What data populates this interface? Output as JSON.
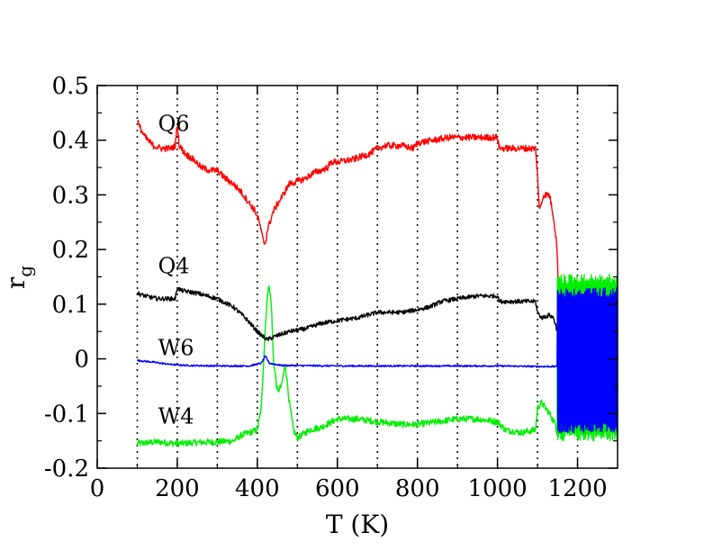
{
  "chart_data": {
    "type": "line",
    "xlabel": "T (K)",
    "ylabel": "r",
    "ylabel_subscript": "g",
    "xlim": [
      0,
      1300
    ],
    "ylim": [
      -0.2,
      0.5
    ],
    "x_ticks": [
      "0",
      "200",
      "400",
      "600",
      "800",
      "1000",
      "1200"
    ],
    "y_ticks": [
      "-0.2",
      "-0.1",
      "0",
      "0.1",
      "0.2",
      "0.3",
      "0.4",
      "0.5"
    ],
    "vertical_dotted_lines_at": [
      100,
      200,
      300,
      400,
      500,
      600,
      700,
      800,
      900,
      1000,
      1100,
      1200
    ],
    "series": [
      {
        "name": "Q6",
        "color": "#ff0000",
        "noise": 0.006,
        "points": [
          [
            100,
            0.44
          ],
          [
            105,
            0.425
          ],
          [
            120,
            0.405
          ],
          [
            140,
            0.39
          ],
          [
            160,
            0.385
          ],
          [
            185,
            0.385
          ],
          [
            195,
            0.39
          ],
          [
            200,
            0.43
          ],
          [
            205,
            0.39
          ],
          [
            220,
            0.375
          ],
          [
            240,
            0.365
          ],
          [
            260,
            0.35
          ],
          [
            280,
            0.345
          ],
          [
            300,
            0.345
          ],
          [
            320,
            0.33
          ],
          [
            340,
            0.32
          ],
          [
            360,
            0.305
          ],
          [
            380,
            0.285
          ],
          [
            395,
            0.27
          ],
          [
            405,
            0.25
          ],
          [
            415,
            0.215
          ],
          [
            420,
            0.21
          ],
          [
            425,
            0.235
          ],
          [
            440,
            0.27
          ],
          [
            460,
            0.295
          ],
          [
            480,
            0.32
          ],
          [
            500,
            0.325
          ],
          [
            520,
            0.33
          ],
          [
            540,
            0.34
          ],
          [
            560,
            0.345
          ],
          [
            575,
            0.35
          ],
          [
            585,
            0.36
          ],
          [
            600,
            0.36
          ],
          [
            640,
            0.365
          ],
          [
            680,
            0.375
          ],
          [
            700,
            0.385
          ],
          [
            720,
            0.39
          ],
          [
            760,
            0.39
          ],
          [
            790,
            0.385
          ],
          [
            800,
            0.395
          ],
          [
            840,
            0.4
          ],
          [
            880,
            0.405
          ],
          [
            920,
            0.405
          ],
          [
            960,
            0.405
          ],
          [
            1000,
            0.405
          ],
          [
            1005,
            0.385
          ],
          [
            1050,
            0.385
          ],
          [
            1095,
            0.385
          ],
          [
            1100,
            0.335
          ],
          [
            1105,
            0.27
          ],
          [
            1115,
            0.3
          ],
          [
            1130,
            0.3
          ],
          [
            1140,
            0.26
          ],
          [
            1148,
            0.21
          ],
          [
            1152,
            0.14
          ]
        ],
        "label": "Q6",
        "label_at": [
          152,
          0.43
        ]
      },
      {
        "name": "Q4",
        "color": "#000000",
        "noise": 0.004,
        "points": [
          [
            100,
            0.12
          ],
          [
            120,
            0.115
          ],
          [
            150,
            0.11
          ],
          [
            180,
            0.11
          ],
          [
            195,
            0.11
          ],
          [
            200,
            0.13
          ],
          [
            210,
            0.125
          ],
          [
            250,
            0.12
          ],
          [
            300,
            0.11
          ],
          [
            340,
            0.095
          ],
          [
            370,
            0.075
          ],
          [
            400,
            0.05
          ],
          [
            415,
            0.04
          ],
          [
            425,
            0.035
          ],
          [
            440,
            0.04
          ],
          [
            480,
            0.05
          ],
          [
            520,
            0.055
          ],
          [
            560,
            0.065
          ],
          [
            600,
            0.07
          ],
          [
            650,
            0.075
          ],
          [
            700,
            0.085
          ],
          [
            760,
            0.085
          ],
          [
            800,
            0.09
          ],
          [
            830,
            0.095
          ],
          [
            860,
            0.105
          ],
          [
            900,
            0.11
          ],
          [
            950,
            0.115
          ],
          [
            1000,
            0.115
          ],
          [
            1005,
            0.105
          ],
          [
            1050,
            0.105
          ],
          [
            1095,
            0.105
          ],
          [
            1100,
            0.085
          ],
          [
            1110,
            0.075
          ],
          [
            1130,
            0.08
          ],
          [
            1140,
            0.075
          ],
          [
            1150,
            0.05
          ]
        ],
        "label": "Q4",
        "label_at": [
          152,
          0.17
        ]
      },
      {
        "name": "W6",
        "color": "#0000ff",
        "noise": 0.0015,
        "points": [
          [
            100,
            -0.003
          ],
          [
            140,
            -0.006
          ],
          [
            180,
            -0.01
          ],
          [
            220,
            -0.012
          ],
          [
            300,
            -0.013
          ],
          [
            380,
            -0.013
          ],
          [
            410,
            -0.008
          ],
          [
            420,
            0.005
          ],
          [
            430,
            -0.008
          ],
          [
            460,
            -0.012
          ],
          [
            600,
            -0.013
          ],
          [
            800,
            -0.013
          ],
          [
            1000,
            -0.013
          ],
          [
            1100,
            -0.014
          ],
          [
            1150,
            -0.014
          ]
        ],
        "label": "W6",
        "label_at": [
          152,
          0.02
        ]
      },
      {
        "name": "W4",
        "color": "#00ee00",
        "noise": 0.006,
        "points": [
          [
            100,
            -0.155
          ],
          [
            150,
            -0.152
          ],
          [
            200,
            -0.155
          ],
          [
            250,
            -0.153
          ],
          [
            300,
            -0.152
          ],
          [
            340,
            -0.15
          ],
          [
            360,
            -0.14
          ],
          [
            380,
            -0.135
          ],
          [
            400,
            -0.13
          ],
          [
            410,
            -0.09
          ],
          [
            420,
            0.06
          ],
          [
            428,
            0.14
          ],
          [
            435,
            0.1
          ],
          [
            440,
            0.0
          ],
          [
            450,
            -0.06
          ],
          [
            460,
            -0.05
          ],
          [
            470,
            -0.01
          ],
          [
            480,
            -0.08
          ],
          [
            490,
            -0.13
          ],
          [
            500,
            -0.145
          ],
          [
            530,
            -0.13
          ],
          [
            560,
            -0.125
          ],
          [
            600,
            -0.11
          ],
          [
            650,
            -0.11
          ],
          [
            700,
            -0.115
          ],
          [
            760,
            -0.12
          ],
          [
            800,
            -0.12
          ],
          [
            850,
            -0.115
          ],
          [
            900,
            -0.11
          ],
          [
            950,
            -0.11
          ],
          [
            1000,
            -0.115
          ],
          [
            1020,
            -0.13
          ],
          [
            1060,
            -0.135
          ],
          [
            1095,
            -0.13
          ],
          [
            1100,
            -0.09
          ],
          [
            1110,
            -0.08
          ],
          [
            1130,
            -0.1
          ],
          [
            1145,
            -0.12
          ],
          [
            1150,
            -0.14
          ]
        ],
        "label": "W4",
        "label_at": [
          152,
          -0.105
        ]
      }
    ],
    "high_temp_band": {
      "x_range": [
        1150,
        1300
      ],
      "blue": [
        -0.135,
        0.13
      ],
      "green": [
        -0.15,
        0.155
      ]
    }
  }
}
